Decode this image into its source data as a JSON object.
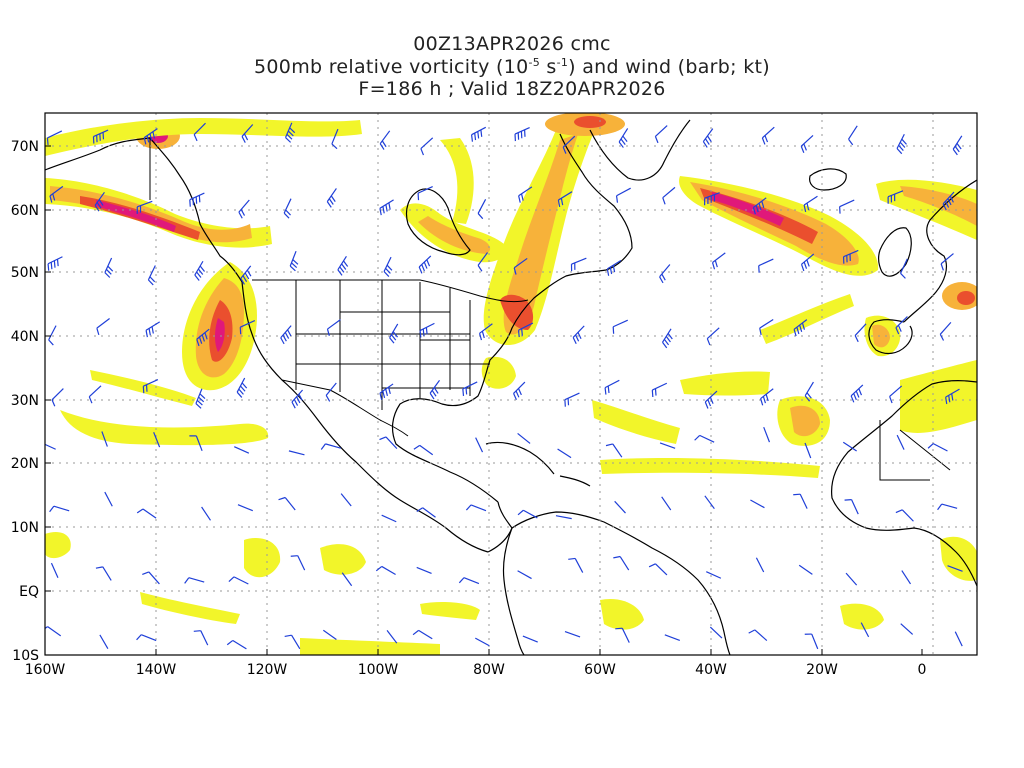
{
  "header": {
    "run": "00Z13APR2026 cmc",
    "field_prefix": "500mb relative vorticity (10",
    "field_exp1": "-5",
    "field_mid": " s",
    "field_exp2": "-1",
    "field_suffix": ") and wind (barb; kt)",
    "valid": "F=186 h ; Valid 18Z20APR2026"
  },
  "axes": {
    "lon_labels": [
      "160W",
      "140W",
      "120W",
      "100W",
      "80W",
      "60W",
      "40W",
      "20W",
      "0"
    ],
    "lat_labels": [
      "70N",
      "60N",
      "50N",
      "40N",
      "30N",
      "20N",
      "10N",
      "EQ",
      "10S"
    ]
  },
  "colors": {
    "low": "#f2f52a",
    "mid": "#f7b23a",
    "high": "#ea4f2e",
    "peak": "#e0187a",
    "barb": "#1f3fd8",
    "coast": "#000000",
    "grid": "#9a9a9a"
  }
}
